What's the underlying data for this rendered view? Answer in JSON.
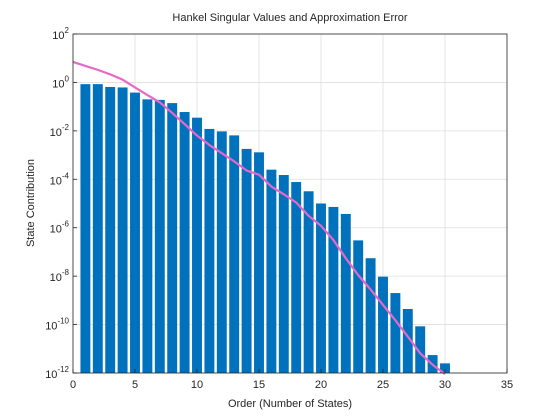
{
  "chart_data": {
    "type": "bar",
    "title": "Hankel Singular Values and Approximation Error",
    "xlabel": "Order (Number of States)",
    "ylabel": "State Contribution",
    "y_scale": "log",
    "xlim": [
      0,
      35
    ],
    "ylim": [
      1e-12,
      100
    ],
    "grid": true,
    "x_ticks": [
      "0",
      "5",
      "10",
      "15",
      "20",
      "25",
      "30",
      "35"
    ],
    "y_ticks": [
      {
        "base": "10",
        "exp": "2"
      },
      {
        "base": "10",
        "exp": "0"
      },
      {
        "base": "10",
        "exp": "-2"
      },
      {
        "base": "10",
        "exp": "-4"
      },
      {
        "base": "10",
        "exp": "-6"
      },
      {
        "base": "10",
        "exp": "-8"
      },
      {
        "base": "10",
        "exp": "-10"
      },
      {
        "base": "10",
        "exp": "-12"
      }
    ],
    "bar_color": "#0072BD",
    "line_color": "#E868C8",
    "series": [
      {
        "kind": "bar",
        "x": [
          1,
          2,
          3,
          4,
          5,
          6,
          7,
          8,
          9,
          10,
          11,
          12,
          13,
          14,
          15,
          16,
          17,
          18,
          19,
          20,
          21,
          22,
          23,
          24,
          25,
          26,
          27,
          28,
          29,
          30
        ],
        "values": [
          0.85,
          0.85,
          0.65,
          0.62,
          0.38,
          0.2,
          0.19,
          0.14,
          0.06,
          0.035,
          0.012,
          0.0095,
          0.0065,
          0.0018,
          0.0013,
          0.00025,
          0.00015,
          7.7e-05,
          3.2e-05,
          1e-05,
          7.2e-06,
          3.7e-06,
          3e-07,
          5.5e-08,
          9.5e-09,
          2e-09,
          4.4e-10,
          8.5e-11,
          5.5e-12,
          2.5e-12
        ]
      },
      {
        "kind": "line",
        "x": [
          0,
          1,
          2,
          3,
          4,
          5,
          6,
          7,
          8,
          9,
          10,
          11,
          12,
          13,
          14,
          15,
          16,
          17,
          18,
          19,
          20,
          21,
          22,
          23,
          24,
          25,
          26,
          27,
          28,
          29,
          30
        ],
        "values": [
          7,
          4.8,
          3.3,
          2.15,
          1.3,
          0.62,
          0.3,
          0.15,
          0.055,
          0.019,
          0.0064,
          0.0026,
          0.0012,
          0.00055,
          0.00023,
          0.000155,
          5e-05,
          2.4e-05,
          1.1e-05,
          3.1e-06,
          1.2e-06,
          3.1e-07,
          5.5e-08,
          1.1e-08,
          2.8e-09,
          6.5e-10,
          1.5e-10,
          3.2e-11,
          6.5e-12,
          2.2e-12,
          9e-13
        ]
      }
    ]
  }
}
